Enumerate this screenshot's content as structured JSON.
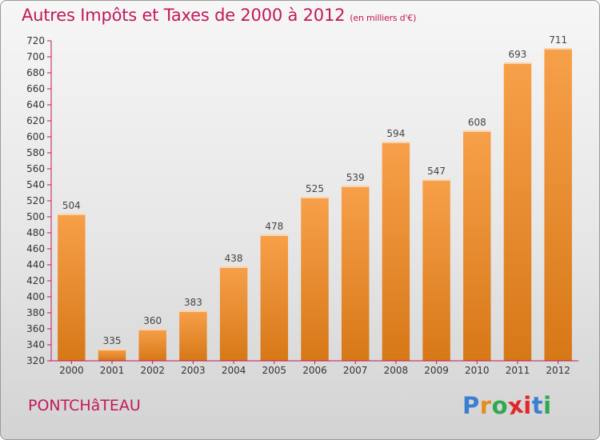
{
  "header": {
    "title": "Autres Impôts et Taxes de 2000 à 2012",
    "unit": "(en milliers d'€)"
  },
  "footer": {
    "city": "PONTCHâTEAU",
    "brand_letters": [
      "P",
      "r",
      "o",
      "x",
      "i",
      "t",
      "i"
    ],
    "brand_colors": [
      "#3b7fd0",
      "#e88a1c",
      "#2fa84f",
      "#e0282b",
      "#e0282b",
      "#3b7fd0",
      "#2fa84f"
    ]
  },
  "chart_data": {
    "type": "bar",
    "title": "Autres Impôts et Taxes de 2000 à 2012",
    "xlabel": "",
    "ylabel": "",
    "categories": [
      "2000",
      "2001",
      "2002",
      "2003",
      "2004",
      "2005",
      "2006",
      "2007",
      "2008",
      "2009",
      "2010",
      "2011",
      "2012"
    ],
    "values": [
      504,
      335,
      360,
      383,
      438,
      478,
      525,
      539,
      594,
      547,
      608,
      693,
      711
    ],
    "ylim": [
      320,
      720
    ],
    "yticks": [
      320,
      340,
      360,
      380,
      400,
      420,
      440,
      460,
      480,
      500,
      520,
      540,
      560,
      580,
      600,
      620,
      640,
      660,
      680,
      700,
      720
    ],
    "grid": false,
    "bar_color_top": "#f7a04a",
    "bar_color_bottom": "#d77817",
    "axis_color": "#c2185b"
  }
}
